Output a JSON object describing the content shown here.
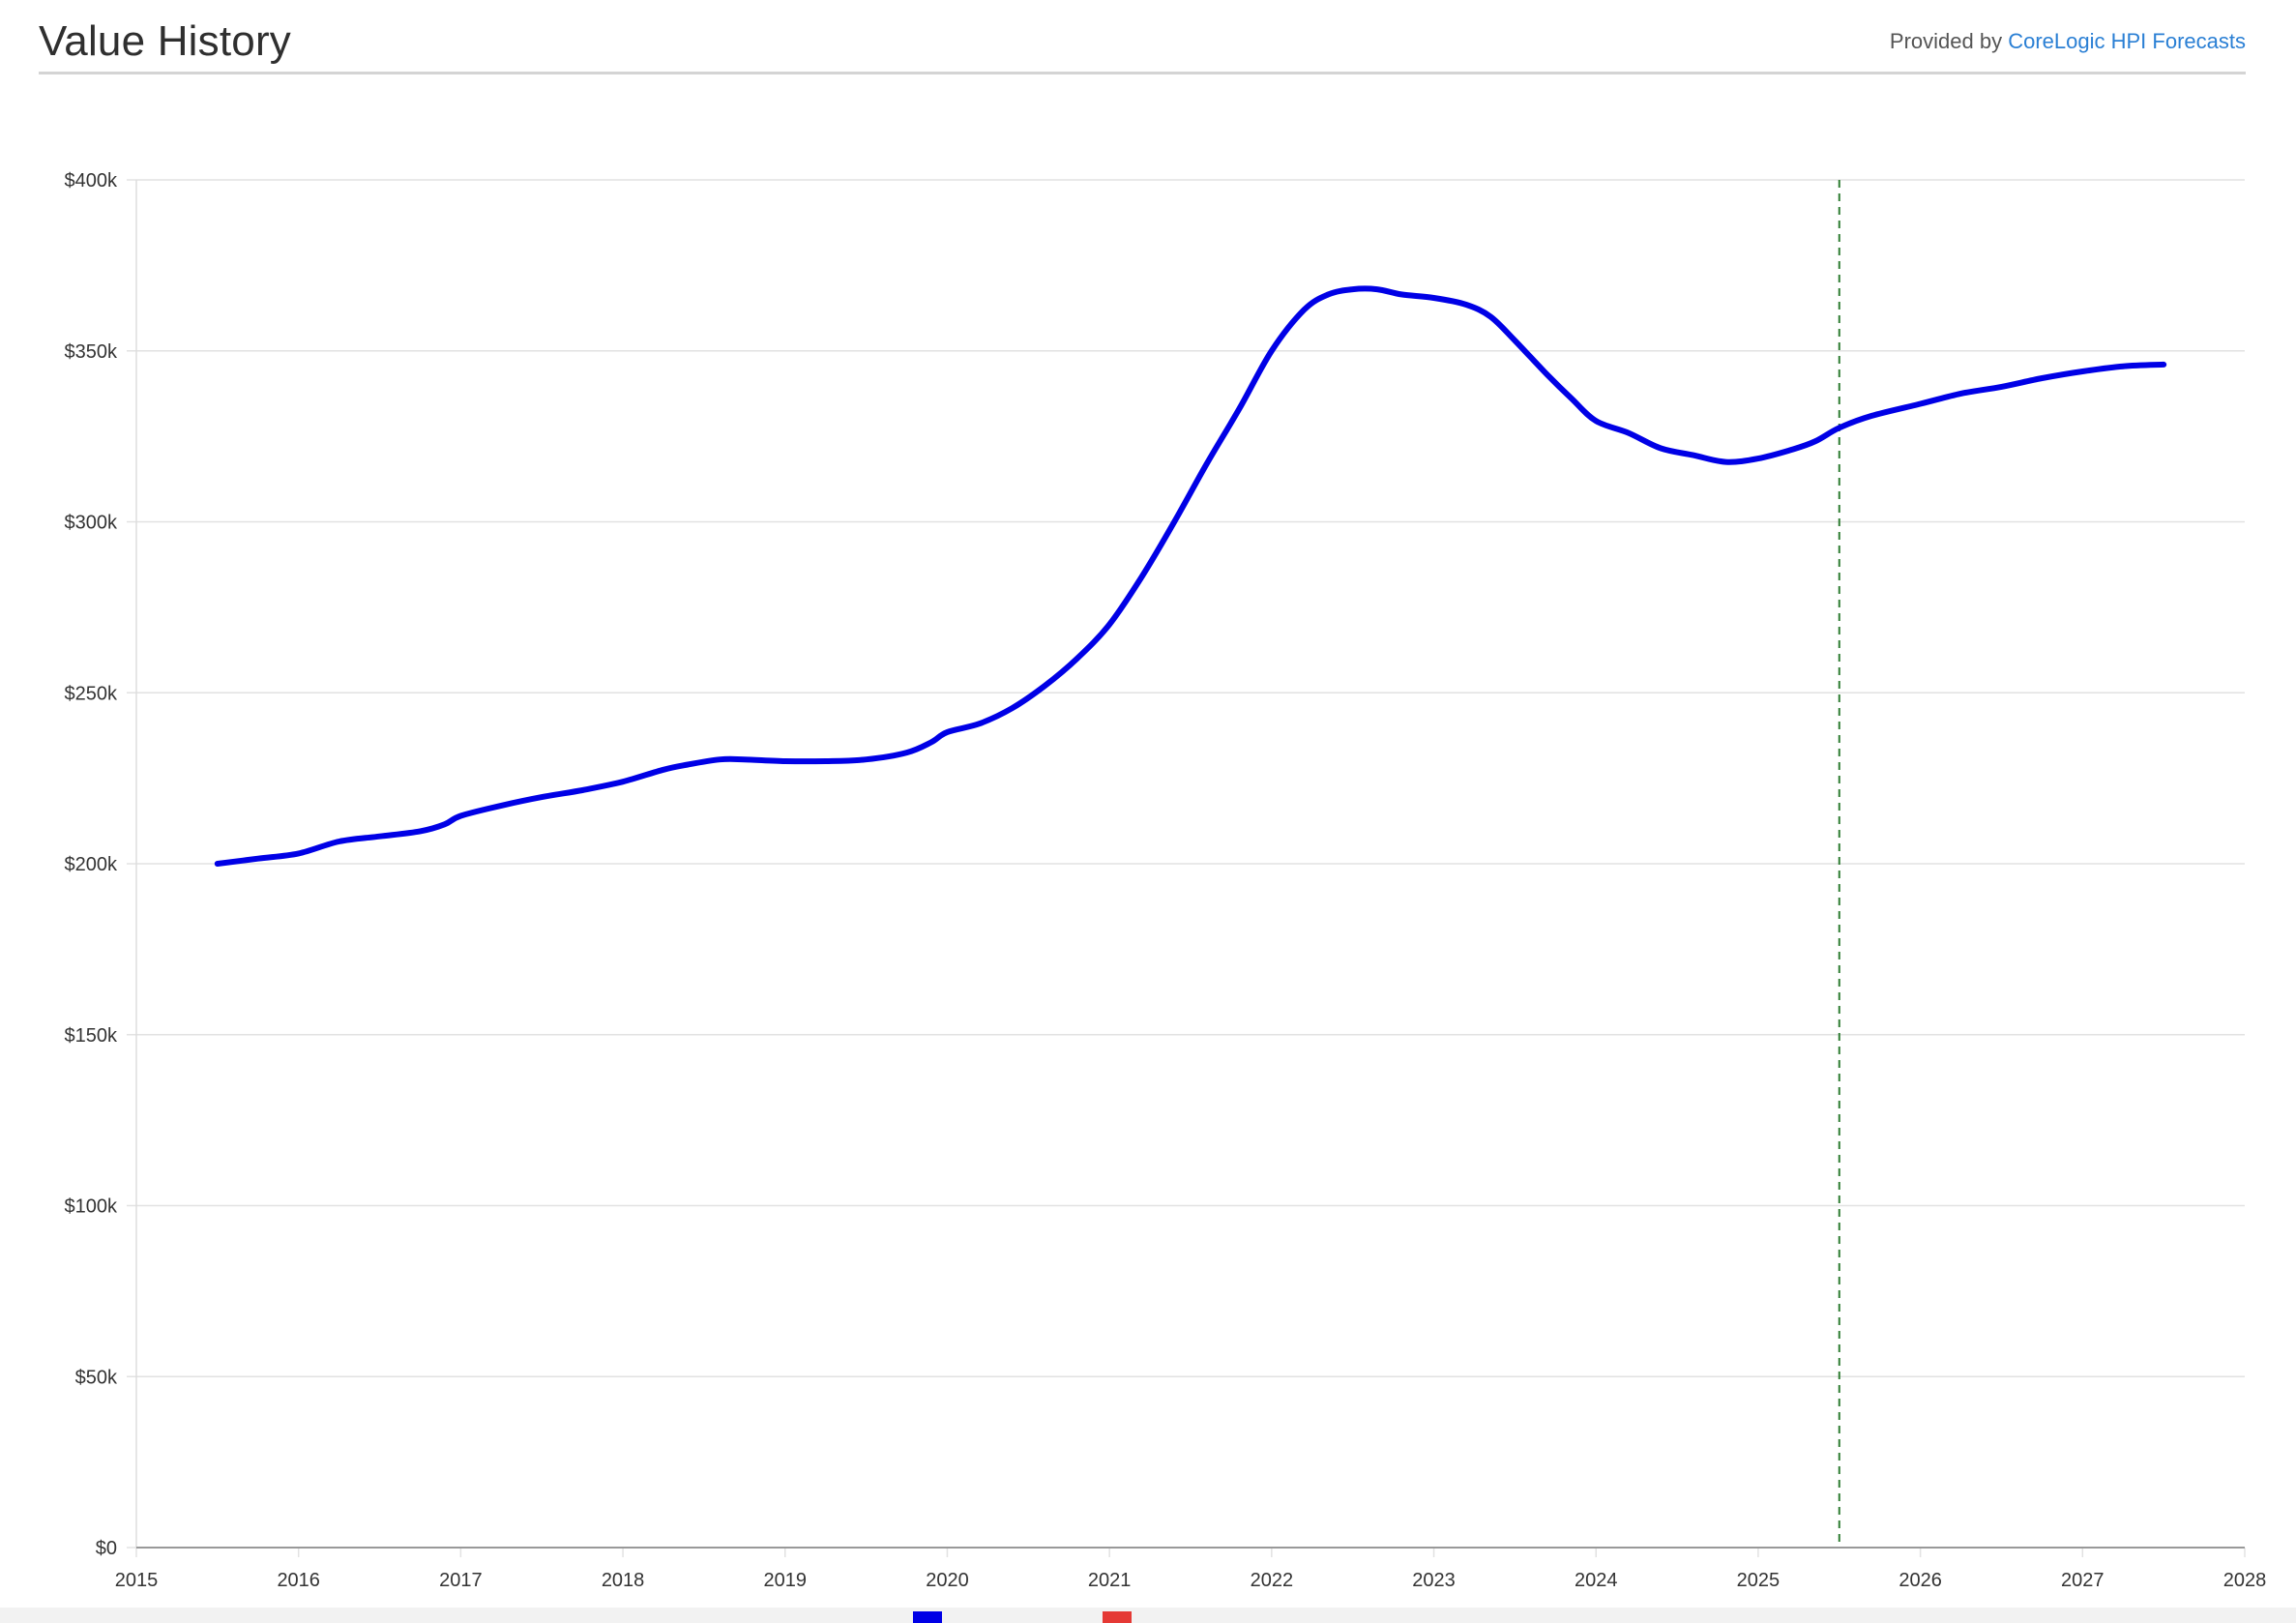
{
  "header": {
    "title": "Value History",
    "provided_by": "Provided by",
    "provider_link": "CoreLogic HPI Forecasts"
  },
  "colors": {
    "series": "#0000e6",
    "forecast_marker": "#2e7d32",
    "legend_second": "#e53935",
    "grid": "#e2e2e2",
    "axis": "#999999"
  },
  "chart_data": {
    "type": "line",
    "title": "",
    "xlabel": "",
    "ylabel": "",
    "xlim": [
      2015,
      2028
    ],
    "ylim": [
      0,
      400000
    ],
    "x_ticks": [
      "2015",
      "2016",
      "2017",
      "2018",
      "2019",
      "2020",
      "2021",
      "2022",
      "2023",
      "2024",
      "2025",
      "2026",
      "2027",
      "2028"
    ],
    "y_ticks": [
      {
        "value": 0,
        "label": "$0"
      },
      {
        "value": 50000,
        "label": "$50k"
      },
      {
        "value": 100000,
        "label": "$100k"
      },
      {
        "value": 150000,
        "label": "$150k"
      },
      {
        "value": 200000,
        "label": "$200k"
      },
      {
        "value": 250000,
        "label": "$250k"
      },
      {
        "value": 300000,
        "label": "$300k"
      },
      {
        "value": 350000,
        "label": "$350k"
      },
      {
        "value": 400000,
        "label": "$400k"
      }
    ],
    "grid": true,
    "forecast_start": 2025.5,
    "series": [
      {
        "values_x": [
          2015.5,
          2015.75,
          2016.0,
          2016.25,
          2016.5,
          2016.75,
          2016.9,
          2017.0,
          2017.25,
          2017.5,
          2017.75,
          2018.0,
          2018.25,
          2018.4,
          2018.6,
          2018.75,
          2019.0,
          2019.25,
          2019.5,
          2019.75,
          2019.9,
          2020.0,
          2020.2,
          2020.4,
          2020.6,
          2020.8,
          2021.0,
          2021.2,
          2021.4,
          2021.6,
          2021.8,
          2022.0,
          2022.2,
          2022.35,
          2022.5,
          2022.65,
          2022.8,
          2023.0,
          2023.2,
          2023.35,
          2023.5,
          2023.7,
          2023.85,
          2024.0,
          2024.2,
          2024.4,
          2024.6,
          2024.8,
          2025.0,
          2025.2,
          2025.35,
          2025.5,
          2025.7,
          2026.0,
          2026.25,
          2026.5,
          2026.75,
          2027.0,
          2027.25,
          2027.5
        ],
        "values": [
          200000,
          201500,
          203000,
          206500,
          208000,
          209500,
          211500,
          214000,
          217000,
          219500,
          221500,
          224000,
          227500,
          229000,
          230500,
          230500,
          230000,
          230000,
          230500,
          232500,
          235500,
          238500,
          241000,
          245500,
          252000,
          260000,
          270000,
          284000,
          300000,
          317000,
          333000,
          350000,
          362000,
          366500,
          368000,
          368000,
          366500,
          365500,
          363500,
          360000,
          353000,
          343000,
          336000,
          329500,
          326000,
          321500,
          319500,
          317500,
          318500,
          321000,
          323500,
          327500,
          331000,
          334500,
          337500,
          339500,
          342000,
          344000,
          345500,
          346000
        ]
      }
    ],
    "legend": {
      "placement": "bottom"
    }
  }
}
